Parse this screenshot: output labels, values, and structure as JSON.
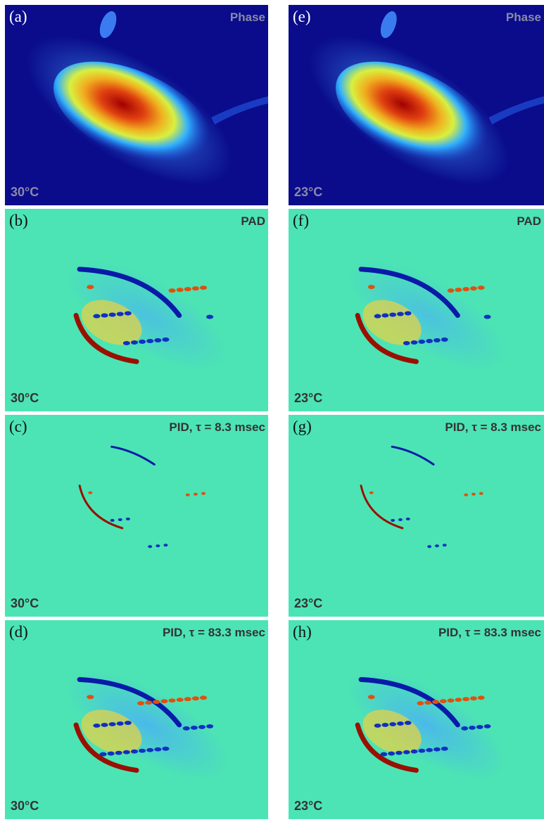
{
  "panels": [
    {
      "label": "(a)",
      "title": "Phase",
      "temperature": "30°C"
    },
    {
      "label": "(b)",
      "title": "PAD",
      "temperature": "30°C"
    },
    {
      "label": "(c)",
      "title": "PID, τ = 8.3 msec",
      "temperature": "30°C"
    },
    {
      "label": "(d)",
      "title": "PID, τ = 83.3 msec",
      "temperature": "30°C"
    },
    {
      "label": "(e)",
      "title": "Phase",
      "temperature": "23°C"
    },
    {
      "label": "(f)",
      "title": "PAD",
      "temperature": "23°C"
    },
    {
      "label": "(g)",
      "title": "PID, τ = 8.3 msec",
      "temperature": "23°C"
    },
    {
      "label": "(h)",
      "title": "PID, τ = 83.3 msec",
      "temperature": "23°C"
    }
  ]
}
